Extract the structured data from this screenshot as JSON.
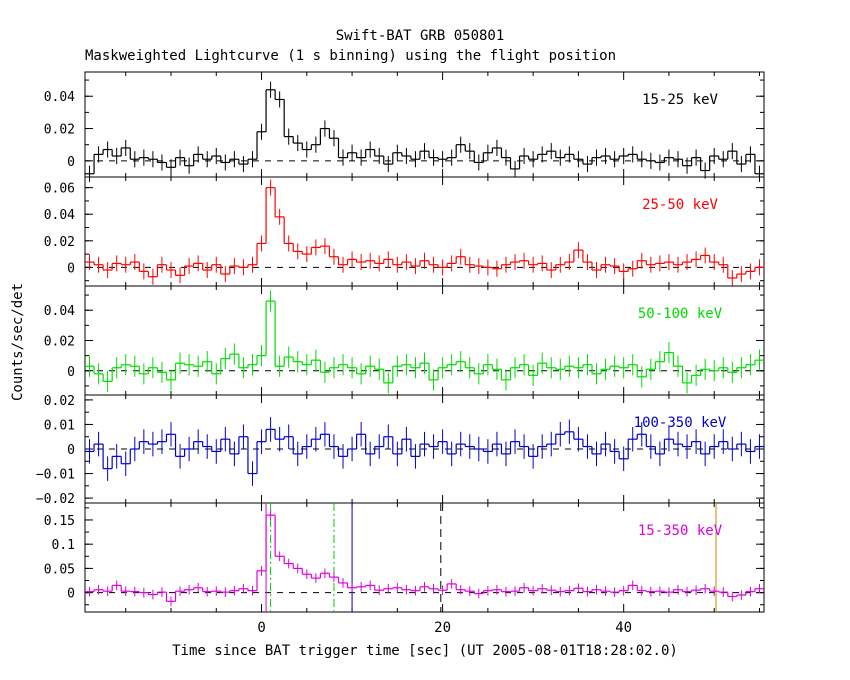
{
  "chart_data": {
    "type": "line",
    "title": "Swift-BAT GRB 050801",
    "subtitle": "Maskweighted Lightcurve (1 s binning) using the flight position",
    "xlabel": "Time since BAT trigger time [sec] (UT 2005-08-01T18:28:02.0)",
    "ylabel": "Counts/sec/det",
    "xlim": [
      -19.5,
      55.5
    ],
    "x_ticks": [
      0,
      20,
      40
    ],
    "x_tick_labels": [
      "0",
      "20",
      "40"
    ],
    "panels": [
      {
        "name": "15-25 keV",
        "color": "#000000",
        "ylim": [
          -0.01,
          0.055
        ],
        "y_ticks": [
          0,
          0.02,
          0.04
        ],
        "y_tick_labels": [
          "0",
          "0.02",
          "0.04"
        ],
        "x": [
          -19,
          -18,
          -17,
          -16,
          -15,
          -14,
          -13,
          -12,
          -11,
          -10,
          -9,
          -8,
          -7,
          -6,
          -5,
          -4,
          -3,
          -2,
          -1,
          0,
          1,
          2,
          3,
          4,
          5,
          6,
          7,
          8,
          9,
          10,
          11,
          12,
          13,
          14,
          15,
          16,
          17,
          18,
          19,
          20,
          21,
          22,
          23,
          24,
          25,
          26,
          27,
          28,
          29,
          30,
          31,
          32,
          33,
          34,
          35,
          36,
          37,
          38,
          39,
          40,
          41,
          42,
          43,
          44,
          45,
          46,
          47,
          48,
          49,
          50,
          51,
          52,
          53,
          54,
          55
        ],
        "y": [
          -0.008,
          0.004,
          0.007,
          0.003,
          0.008,
          0.001,
          0.002,
          0.001,
          -0.001,
          -0.004,
          0.002,
          -0.003,
          0.004,
          0.001,
          0.003,
          -0.001,
          0.001,
          -0.002,
          0.001,
          0.018,
          0.044,
          0.038,
          0.015,
          0.011,
          0.007,
          0.01,
          0.02,
          0.014,
          0.002,
          0.005,
          0.002,
          0.007,
          0.003,
          -0.002,
          0.005,
          0.003,
          0.001,
          0.006,
          0.002,
          0.001,
          0.002,
          0.01,
          0.006,
          -0.001,
          0.005,
          0.008,
          0.002,
          -0.005,
          0.003,
          0.001,
          0.004,
          0.006,
          0.002,
          0.004,
          0.001,
          -0.002,
          0.002,
          0.003,
          0.001,
          0.003,
          0.004,
          0.001,
          0.0,
          -0.001,
          0.002,
          0.001,
          -0.003,
          0.002,
          -0.006,
          0.003,
          0.001,
          0.006,
          -0.002,
          0.004,
          -0.008
        ],
        "err": 0.005
      },
      {
        "name": "25-50 keV",
        "color": "#ff0000",
        "ylim": [
          -0.014,
          0.068
        ],
        "y_ticks": [
          0,
          0.02,
          0.04,
          0.06
        ],
        "y_tick_labels": [
          "0",
          "0.02",
          "0.04",
          "0.06"
        ],
        "x": [
          -19,
          -18,
          -17,
          -16,
          -15,
          -14,
          -13,
          -12,
          -11,
          -10,
          -9,
          -8,
          -7,
          -6,
          -5,
          -4,
          -3,
          -2,
          -1,
          0,
          1,
          2,
          3,
          4,
          5,
          6,
          7,
          8,
          9,
          10,
          11,
          12,
          13,
          14,
          15,
          16,
          17,
          18,
          19,
          20,
          21,
          22,
          23,
          24,
          25,
          26,
          27,
          28,
          29,
          30,
          31,
          32,
          33,
          34,
          35,
          36,
          37,
          38,
          39,
          40,
          41,
          42,
          43,
          44,
          45,
          46,
          47,
          48,
          49,
          50,
          51,
          52,
          53,
          54,
          55
        ],
        "y": [
          0.004,
          0.002,
          -0.002,
          0.003,
          0.002,
          0.004,
          -0.003,
          -0.007,
          0.002,
          -0.002,
          -0.006,
          0.001,
          0.003,
          -0.002,
          0.002,
          -0.005,
          0.001,
          0.0,
          0.002,
          0.018,
          0.06,
          0.038,
          0.018,
          0.012,
          0.01,
          0.015,
          0.016,
          0.008,
          0.002,
          0.006,
          0.004,
          0.005,
          0.003,
          0.006,
          0.002,
          0.004,
          0.001,
          0.005,
          0.002,
          0.0,
          0.003,
          0.008,
          0.002,
          0.001,
          0.0,
          -0.001,
          0.002,
          0.004,
          0.005,
          0.002,
          0.003,
          -0.002,
          0.002,
          0.004,
          0.013,
          0.004,
          -0.002,
          0.002,
          0.001,
          -0.003,
          -0.001,
          0.005,
          0.002,
          0.003,
          0.004,
          0.002,
          0.004,
          0.006,
          0.009,
          0.004,
          0.002,
          -0.008,
          -0.005,
          -0.003,
          0.0
        ],
        "err": 0.006
      },
      {
        "name": "50-100 keV",
        "color": "#00dd00",
        "ylim": [
          -0.016,
          0.056
        ],
        "y_ticks": [
          0,
          0.02,
          0.04
        ],
        "y_tick_labels": [
          "0",
          "0.02",
          "0.04"
        ],
        "x": [
          -19,
          -18,
          -17,
          -16,
          -15,
          -14,
          -13,
          -12,
          -11,
          -10,
          -9,
          -8,
          -7,
          -6,
          -5,
          -4,
          -3,
          -2,
          -1,
          0,
          1,
          2,
          3,
          4,
          5,
          6,
          7,
          8,
          9,
          10,
          11,
          12,
          13,
          14,
          15,
          16,
          17,
          18,
          19,
          20,
          21,
          22,
          23,
          24,
          25,
          26,
          27,
          28,
          29,
          30,
          31,
          32,
          33,
          34,
          35,
          36,
          37,
          38,
          39,
          40,
          41,
          42,
          43,
          44,
          45,
          46,
          47,
          48,
          49,
          50,
          51,
          52,
          53,
          54,
          55
        ],
        "y": [
          0.003,
          -0.002,
          -0.007,
          0.002,
          0.004,
          0.003,
          -0.002,
          0.002,
          -0.001,
          -0.006,
          0.005,
          0.004,
          0.003,
          0.006,
          -0.002,
          0.008,
          0.011,
          0.002,
          0.004,
          0.01,
          0.046,
          0.003,
          0.009,
          0.006,
          0.004,
          0.007,
          -0.001,
          0.002,
          0.004,
          0.002,
          -0.002,
          0.003,
          0.001,
          -0.008,
          0.003,
          0.004,
          0.002,
          0.005,
          -0.006,
          0.002,
          0.004,
          0.006,
          0.002,
          -0.002,
          0.004,
          0.001,
          -0.006,
          0.002,
          0.004,
          -0.003,
          0.005,
          0.002,
          0.001,
          0.003,
          0.002,
          0.004,
          -0.002,
          0.001,
          0.003,
          0.002,
          0.004,
          -0.004,
          0.001,
          0.006,
          0.012,
          0.003,
          -0.008,
          -0.003,
          0.001,
          0.0,
          0.002,
          -0.001,
          0.002,
          0.004,
          0.007
        ],
        "err": 0.007
      },
      {
        "name": "100-350 keV",
        "color": "#0000cc",
        "ylim": [
          -0.022,
          0.022
        ],
        "y_ticks": [
          -0.02,
          -0.01,
          0,
          0.01,
          0.02
        ],
        "y_tick_labels": [
          "−0.02",
          "−0.01",
          "0",
          "0.01",
          "0.02"
        ],
        "x": [
          -19,
          -18,
          -17,
          -16,
          -15,
          -14,
          -13,
          -12,
          -11,
          -10,
          -9,
          -8,
          -7,
          -6,
          -5,
          -4,
          -3,
          -2,
          -1,
          0,
          1,
          2,
          3,
          4,
          5,
          6,
          7,
          8,
          9,
          10,
          11,
          12,
          13,
          14,
          15,
          16,
          17,
          18,
          19,
          20,
          21,
          22,
          23,
          24,
          25,
          26,
          27,
          28,
          29,
          30,
          31,
          32,
          33,
          34,
          35,
          36,
          37,
          38,
          39,
          40,
          41,
          42,
          43,
          44,
          45,
          46,
          47,
          48,
          49,
          50,
          51,
          52,
          53,
          54,
          55
        ],
        "y": [
          -0.001,
          0.002,
          -0.008,
          -0.003,
          -0.006,
          0.0,
          0.003,
          0.002,
          0.003,
          0.006,
          -0.003,
          0.0,
          0.003,
          0.001,
          -0.001,
          0.004,
          -0.002,
          0.005,
          -0.01,
          0.003,
          0.008,
          0.004,
          0.005,
          -0.002,
          0.001,
          0.004,
          0.006,
          0.001,
          -0.003,
          0.0,
          0.006,
          -0.002,
          0.001,
          0.005,
          -0.002,
          0.004,
          -0.003,
          0.002,
          0.001,
          0.003,
          -0.002,
          0.002,
          0.001,
          0.0,
          -0.001,
          0.002,
          -0.002,
          0.003,
          0.001,
          -0.003,
          0.001,
          0.002,
          0.006,
          0.007,
          0.004,
          0.001,
          -0.002,
          0.002,
          -0.001,
          -0.004,
          0.004,
          0.006,
          0.001,
          -0.002,
          0.004,
          0.002,
          0.001,
          0.003,
          -0.002,
          0.001,
          0.003,
          0.0,
          0.002,
          -0.001,
          0.001
        ],
        "err": 0.005
      },
      {
        "name": "15-350 keV",
        "color": "#dd00dd",
        "ylim": [
          -0.04,
          0.185
        ],
        "y_ticks": [
          0,
          0.05,
          0.1,
          0.15
        ],
        "y_tick_labels": [
          "0",
          "0.05",
          "0.1",
          "0.15"
        ],
        "x": [
          -19,
          -18,
          -17,
          -16,
          -15,
          -14,
          -13,
          -12,
          -11,
          -10,
          -9,
          -8,
          -7,
          -6,
          -5,
          -4,
          -3,
          -2,
          -1,
          0,
          1,
          2,
          3,
          4,
          5,
          6,
          7,
          8,
          9,
          10,
          11,
          12,
          13,
          14,
          15,
          16,
          17,
          18,
          19,
          20,
          21,
          22,
          23,
          24,
          25,
          26,
          27,
          28,
          29,
          30,
          31,
          32,
          33,
          34,
          35,
          36,
          37,
          38,
          39,
          40,
          41,
          42,
          43,
          44,
          45,
          46,
          47,
          48,
          49,
          50,
          51,
          52,
          53,
          54,
          55
        ],
        "y": [
          0.002,
          0.006,
          0.003,
          0.015,
          0.003,
          0.002,
          0.0,
          -0.004,
          0.001,
          -0.018,
          0.003,
          0.006,
          0.01,
          0.002,
          0.003,
          0.001,
          0.004,
          0.008,
          0.004,
          0.045,
          0.16,
          0.075,
          0.06,
          0.05,
          0.038,
          0.03,
          0.04,
          0.032,
          0.02,
          0.01,
          0.012,
          0.015,
          0.005,
          0.008,
          0.01,
          0.006,
          0.004,
          0.012,
          0.008,
          0.005,
          0.018,
          0.006,
          0.003,
          -0.002,
          0.004,
          0.006,
          0.002,
          0.003,
          0.01,
          0.004,
          0.008,
          0.005,
          0.002,
          0.004,
          0.009,
          0.002,
          0.006,
          0.003,
          0.001,
          0.004,
          0.015,
          0.004,
          0.002,
          0.003,
          0.001,
          0.006,
          0.002,
          0.005,
          0.008,
          0.003,
          0.001,
          -0.008,
          -0.005,
          0.002,
          0.008
        ],
        "err": 0.01,
        "vlines": [
          {
            "x": 0.5,
            "color": "#dd00dd",
            "style": "solid"
          },
          {
            "x": 1.0,
            "color": "#00cc00",
            "style": "dashdot"
          },
          {
            "x": 8.0,
            "color": "#00cc00",
            "style": "dashdot"
          },
          {
            "x": 10.0,
            "color": "#0000cc",
            "style": "solid"
          },
          {
            "x": 19.8,
            "color": "#000000",
            "style": "dashed"
          },
          {
            "x": 50.2,
            "color": "#cc8800",
            "style": "solid"
          }
        ]
      }
    ]
  }
}
